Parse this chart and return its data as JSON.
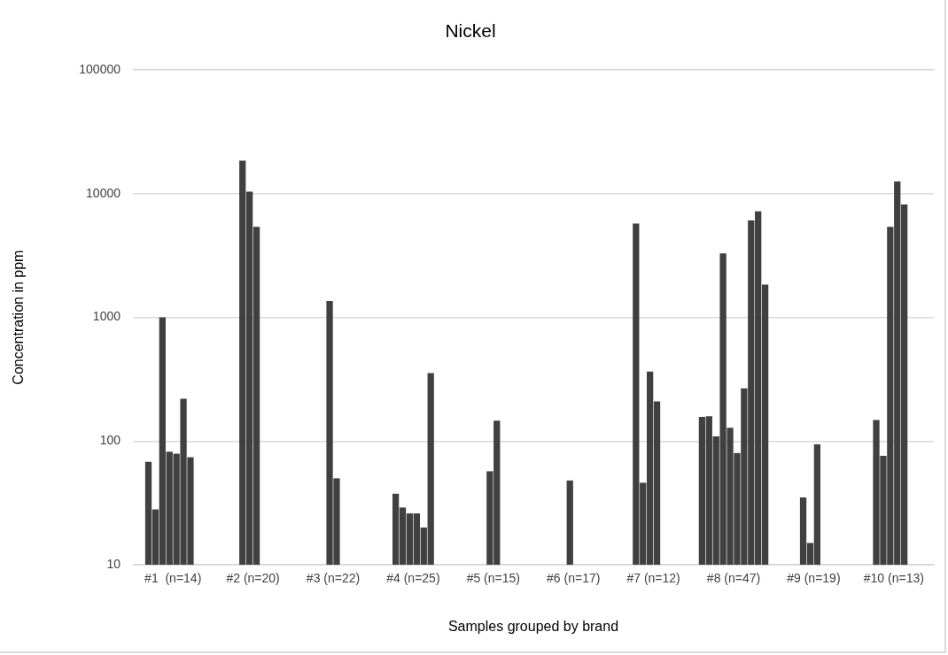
{
  "chart_data": {
    "type": "bar",
    "title": "Nickel",
    "xlabel": "Samples grouped by brand",
    "ylabel": "Concentration in ppm",
    "categories": [
      "#1  (n=14)",
      "#2 (n=20)",
      "#3 (n=22)",
      "#4 (n=25)",
      "#5 (n=15)",
      "#6 (n=17)",
      "#7 (n=12)",
      "#8 (n=47)",
      "#9 (n=19)",
      "#10 (n=13)"
    ],
    "series": [
      {
        "color": "#404040",
        "values": [
          null,
          null,
          null,
          null,
          null,
          null,
          null,
          157,
          null,
          null
        ]
      },
      {
        "color": "#404040",
        "values": [
          68,
          null,
          null,
          null,
          null,
          null,
          null,
          159,
          null,
          null
        ]
      },
      {
        "color": "#404040",
        "values": [
          28,
          null,
          null,
          37.5,
          null,
          null,
          5750,
          109,
          null,
          148
        ]
      },
      {
        "color": "#404040",
        "values": [
          1000,
          18500,
          null,
          29,
          null,
          null,
          46,
          3300,
          35,
          76
        ]
      },
      {
        "color": "#404040",
        "values": [
          82,
          10400,
          1360,
          26,
          57,
          48,
          365,
          128,
          15,
          5400
        ]
      },
      {
        "color": "#404040",
        "values": [
          79,
          5400,
          50,
          26,
          146,
          null,
          209,
          80,
          94,
          12600
        ]
      },
      {
        "color": "#404040",
        "values": [
          220,
          null,
          null,
          20,
          null,
          null,
          null,
          267,
          null,
          8200
        ]
      },
      {
        "color": "#404040",
        "values": [
          74,
          null,
          null,
          355,
          null,
          null,
          null,
          6100,
          null,
          null
        ]
      },
      {
        "color": "#404040",
        "values": [
          null,
          null,
          null,
          null,
          null,
          null,
          null,
          7200,
          null,
          null
        ]
      },
      {
        "color": "#404040",
        "values": [
          null,
          null,
          null,
          null,
          null,
          null,
          null,
          1840,
          null,
          null
        ]
      }
    ],
    "log": true,
    "ylim": [
      10,
      100000
    ],
    "yticks": [
      10,
      100,
      1000,
      10000,
      100000
    ],
    "grid": "y",
    "legend": false
  }
}
